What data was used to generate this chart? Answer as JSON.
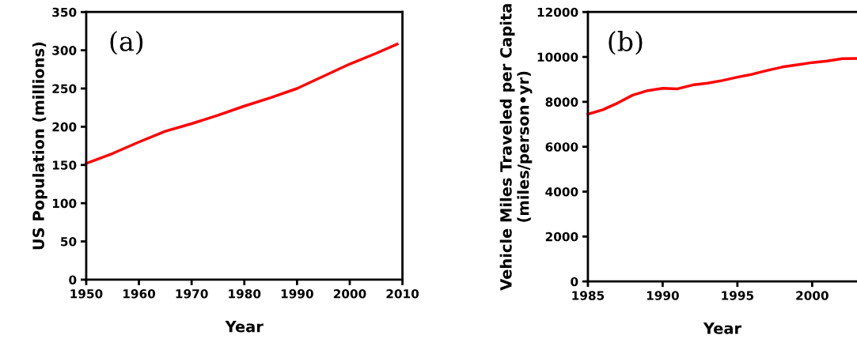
{
  "chart_data": [
    {
      "type": "line",
      "xlabel": "Year",
      "ylabel": "US Population (millions)",
      "annotations": [
        "(a)"
      ],
      "x": [
        1950,
        1955,
        1960,
        1965,
        1970,
        1975,
        1980,
        1985,
        1990,
        1995,
        2000,
        2005,
        2009
      ],
      "series": [
        {
          "color": "#ff0000",
          "values": [
            152,
            165,
            180,
            194,
            204,
            215,
            227,
            238,
            250,
            266,
            282,
            296,
            308
          ]
        }
      ],
      "xlim": [
        1950,
        2010
      ],
      "xticks": [
        1950,
        1960,
        1970,
        1980,
        1990,
        2000,
        2010
      ],
      "ylim": [
        0,
        350
      ],
      "yticks": [
        0,
        50,
        100,
        150,
        200,
        250,
        300,
        350
      ],
      "grid": false,
      "legend": false,
      "marker": "none",
      "line_style": "solid"
    },
    {
      "type": "line",
      "xlabel": "Year",
      "ylabel": "Vehicle Miles Traveled per Capita (miles/person•yr)",
      "annotations": [
        "(b)"
      ],
      "x": [
        1985,
        1986,
        1987,
        1988,
        1989,
        1990,
        1991,
        1992,
        1993,
        1994,
        1995,
        1996,
        1997,
        1998,
        1999,
        2000,
        2001,
        2002,
        2003
      ],
      "series": [
        {
          "color": "#ff0000",
          "values": [
            7450,
            7650,
            7950,
            8300,
            8500,
            8600,
            8580,
            8750,
            8830,
            8950,
            9100,
            9230,
            9400,
            9550,
            9650,
            9750,
            9820,
            9920,
            9930
          ]
        }
      ],
      "xlim": [
        1985,
        2003
      ],
      "xticks": [
        1985,
        1990,
        1995,
        2000
      ],
      "ylim": [
        0,
        12000
      ],
      "yticks": [
        0,
        2000,
        4000,
        6000,
        8000,
        10000,
        12000
      ],
      "grid": false,
      "legend": false,
      "marker": "none",
      "line_style": "solid"
    }
  ]
}
